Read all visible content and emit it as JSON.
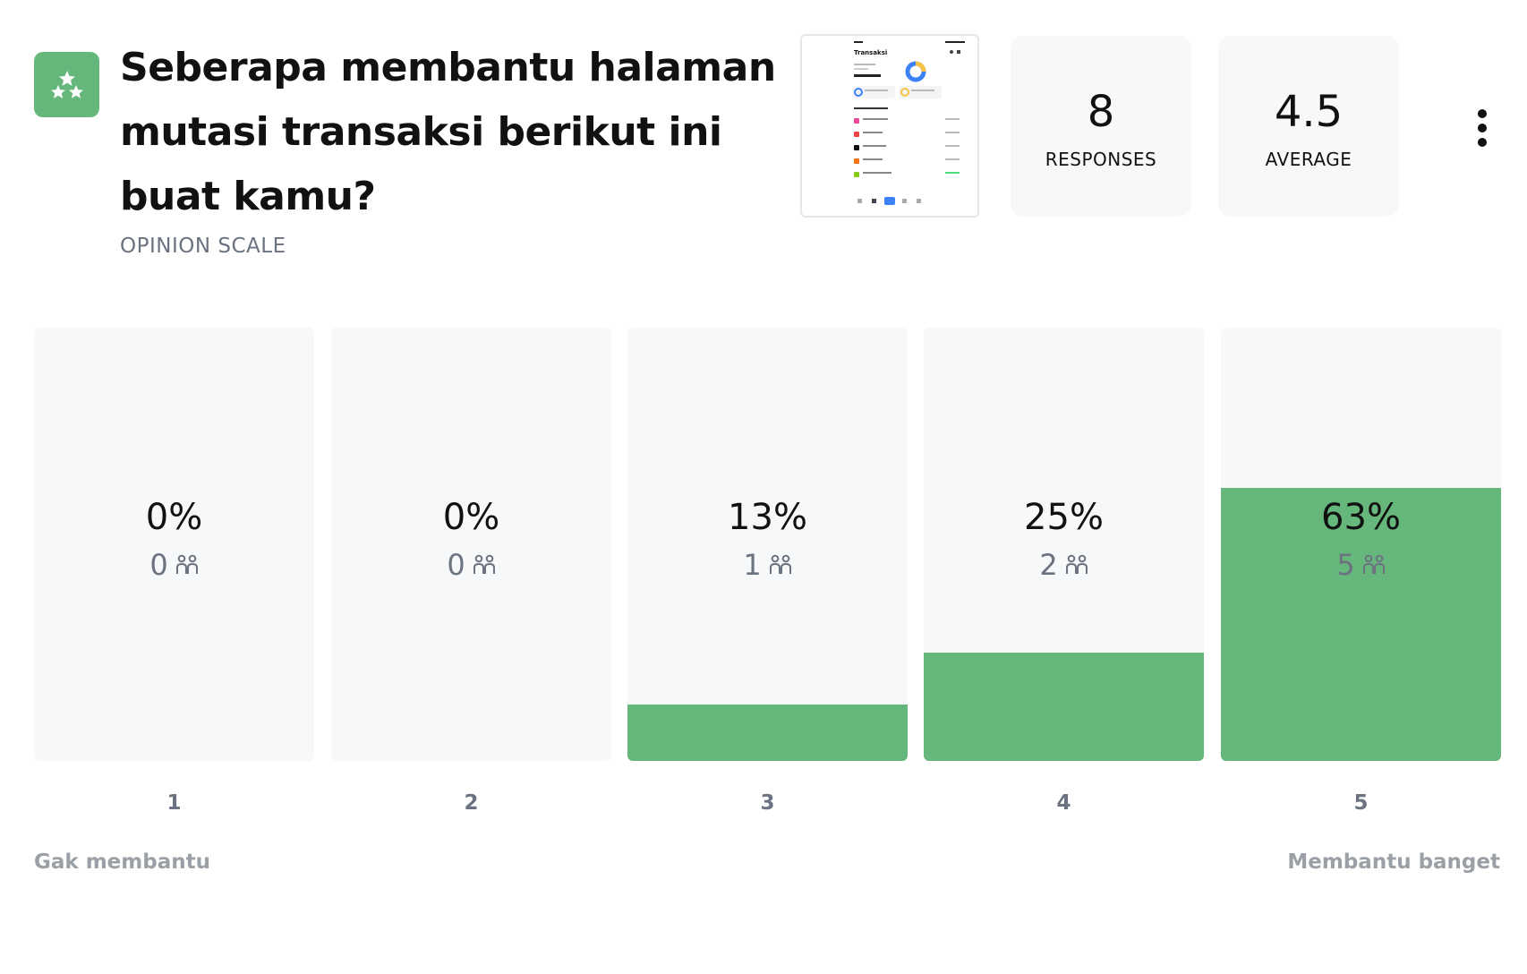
{
  "question": {
    "title": "Seberapa membantu halaman mutasi transaksi berikut ini buat kamu?",
    "type_label": "OPINION SCALE",
    "icon": "rating-stars-icon"
  },
  "thumbnail": {
    "title": "Transaksi"
  },
  "stats": {
    "responses_value": "8",
    "responses_label": "RESPONSES",
    "average_value": "4.5",
    "average_label": "AVERAGE"
  },
  "scale": {
    "min_label": "Gak membantu",
    "max_label": "Membantu banget"
  },
  "colors": {
    "accent": "#66b77b",
    "bar_background": "#f7f8fa",
    "muted_text": "#6b7280"
  },
  "chart_data": {
    "type": "bar",
    "categories": [
      "1",
      "2",
      "3",
      "4",
      "5"
    ],
    "values": [
      0,
      0,
      13,
      25,
      63
    ],
    "value_labels": [
      "0%",
      "0%",
      "13%",
      "25%",
      "63%"
    ],
    "counts": [
      0,
      0,
      1,
      2,
      5
    ],
    "ylim": [
      0,
      100
    ],
    "title": "",
    "xlabel": "",
    "ylabel": "",
    "grid": false
  }
}
